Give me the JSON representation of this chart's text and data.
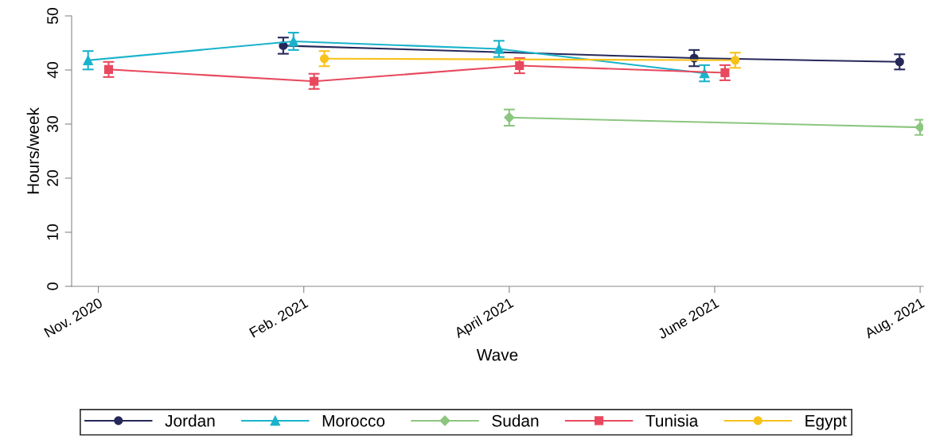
{
  "chart_data": {
    "type": "line",
    "xlabel": "Wave",
    "ylabel": "Hours/week",
    "categories": [
      "Nov. 2020",
      "Feb. 2021",
      "April 2021",
      "June 2021",
      "Aug. 2021"
    ],
    "ylim": [
      0,
      50
    ],
    "yticks": [
      0,
      10,
      20,
      30,
      40,
      50
    ],
    "grid": false,
    "legend": "bottom",
    "line_style": "solid",
    "series": [
      {
        "name": "Jordan",
        "color": "#26285a",
        "marker": "circle",
        "values": [
          null,
          44.5,
          null,
          42.2,
          41.5
        ],
        "errors": [
          null,
          1.5,
          null,
          1.5,
          1.4
        ]
      },
      {
        "name": "Morocco",
        "color": "#1ab3cb",
        "marker": "triangle",
        "values": [
          41.8,
          45.3,
          43.9,
          39.4,
          null
        ],
        "errors": [
          1.7,
          1.6,
          1.5,
          1.5,
          null
        ]
      },
      {
        "name": "Sudan",
        "color": "#8cc680",
        "marker": "diamond",
        "values": [
          null,
          null,
          31.2,
          null,
          29.4
        ],
        "errors": [
          null,
          null,
          1.5,
          null,
          1.4
        ]
      },
      {
        "name": "Tunisia",
        "color": "#e8495e",
        "marker": "square",
        "values": [
          40.1,
          37.9,
          40.8,
          39.5,
          null
        ],
        "errors": [
          1.4,
          1.4,
          1.4,
          1.4,
          null
        ]
      },
      {
        "name": "Egypt",
        "color": "#f8c21c",
        "marker": "circle",
        "values": [
          null,
          42.1,
          null,
          41.8,
          null
        ],
        "errors": [
          null,
          1.4,
          null,
          1.4,
          null
        ]
      }
    ]
  }
}
